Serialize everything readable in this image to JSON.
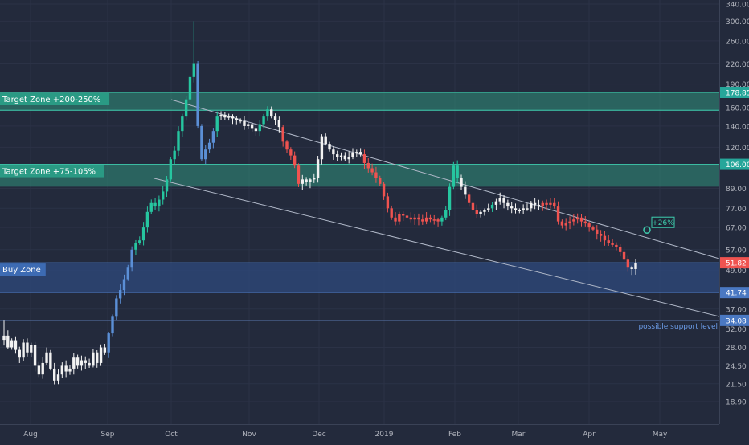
{
  "chart_data": {
    "type": "candlestick",
    "y_scale": "log",
    "ylim": [
      17.5,
      340
    ],
    "price_axis_ticks": [
      "340.00",
      "300.00",
      "260.00",
      "220.00",
      "190.00",
      "160.00",
      "140.00",
      "120.00",
      "89.00",
      "77.00",
      "67.00",
      "57.00",
      "49.00",
      "37.00",
      "32.00",
      "28.00",
      "24.50",
      "21.50",
      "18.90"
    ],
    "time_axis_labels": [
      "Aug",
      "Sep",
      "Oct",
      "Nov",
      "Dec",
      "2019",
      "Feb",
      "Mar",
      "Apr",
      "May"
    ],
    "price_markers": [
      {
        "label": "178.85",
        "value": 178.85,
        "color": "#26a69a"
      },
      {
        "label": "106.00",
        "value": 106.0,
        "color": "#26a69a"
      },
      {
        "label": "51.82",
        "value": 51.82,
        "color": "#ef5350"
      },
      {
        "label": "41.74",
        "value": 41.74,
        "color": "#4a78c2"
      },
      {
        "label": "34.08",
        "value": 34.08,
        "color": "#4a78c2"
      }
    ],
    "zones": [
      {
        "label": "Target Zone +200-250%",
        "top": 178.85,
        "bottom": 157.0,
        "color": "#2e8b77"
      },
      {
        "label": "Target Zone +75-105%",
        "top": 106.0,
        "bottom": 90.5,
        "color": "#2e8b77"
      },
      {
        "label": "Buy Zone",
        "top": 51.82,
        "bottom": 41.74,
        "color": "#2f4a7c"
      }
    ],
    "support_level": {
      "label": "possible support level",
      "value": 34.08
    },
    "target_annotation": {
      "label": "+26%",
      "value": 65.8
    },
    "colors": {
      "background": "#232a3c",
      "bull_teal": "#26c6a0",
      "bull_blue": "#5b8fd6",
      "white": "#f2f2f2",
      "bear": "#ef5350",
      "channel": "#b0b8c8",
      "axis_text": "#b2b5be"
    },
    "candles_close": [
      30.5,
      28,
      29.5,
      27.5,
      26,
      29,
      27,
      28.5,
      24.5,
      23,
      25,
      27,
      24,
      22,
      23,
      24.5,
      23.5,
      24,
      26,
      24.5,
      25.5,
      25,
      24.5,
      27,
      25,
      28,
      27,
      31,
      35,
      40,
      42.5,
      46,
      50,
      57,
      60,
      61,
      67,
      75,
      80,
      78,
      82,
      87,
      95,
      110,
      117,
      135,
      150,
      170,
      200,
      220,
      140,
      110,
      118,
      124,
      135,
      150,
      152,
      149,
      150,
      148,
      146,
      145,
      140,
      142,
      138,
      135,
      142,
      150,
      158,
      150,
      146,
      139,
      125,
      118,
      113,
      105,
      92,
      95,
      93,
      95,
      96,
      110,
      130,
      123,
      118,
      114,
      112,
      113,
      110,
      112,
      115,
      116,
      114,
      107,
      103,
      100,
      96,
      92,
      84,
      77,
      72,
      70,
      74,
      73,
      72,
      71,
      72,
      71,
      70,
      72,
      71,
      71,
      70,
      72,
      76,
      90,
      105,
      96,
      90,
      85,
      80,
      76,
      74,
      75,
      76,
      77,
      79,
      81,
      83,
      80,
      78,
      77,
      76,
      76,
      77,
      77,
      80,
      79,
      78,
      80,
      79,
      80,
      78,
      70,
      68,
      69,
      70,
      71,
      72,
      70,
      69,
      67,
      66,
      64,
      63,
      61,
      60,
      59,
      58,
      56,
      53,
      50,
      49.5,
      51.82
    ],
    "candles_color": [
      "white",
      "white",
      "white",
      "white",
      "white",
      "white",
      "white",
      "white",
      "white",
      "white",
      "white",
      "white",
      "white",
      "white",
      "white",
      "white",
      "white",
      "white",
      "white",
      "white",
      "white",
      "white",
      "white",
      "white",
      "white",
      "white",
      "white",
      "blue",
      "blue",
      "blue",
      "blue",
      "blue",
      "blue",
      "blue",
      "teal",
      "teal",
      "teal",
      "teal",
      "teal",
      "teal",
      "teal",
      "teal",
      "teal",
      "teal",
      "teal",
      "teal",
      "teal",
      "teal",
      "teal",
      "teal",
      "blue",
      "blue",
      "blue",
      "blue",
      "blue",
      "teal",
      "white",
      "white",
      "white",
      "white",
      "white",
      "white",
      "white",
      "white",
      "white",
      "white",
      "teal",
      "teal",
      "teal",
      "white",
      "white",
      "white",
      "red",
      "red",
      "red",
      "red",
      "red",
      "white",
      "white",
      "white",
      "white",
      "white",
      "white",
      "white",
      "white",
      "white",
      "white",
      "white",
      "white",
      "white",
      "white",
      "white",
      "white",
      "red",
      "red",
      "red",
      "red",
      "red",
      "red",
      "red",
      "red",
      "red",
      "red",
      "red",
      "red",
      "red",
      "red",
      "red",
      "red",
      "red",
      "red",
      "red",
      "red",
      "teal",
      "teal",
      "teal",
      "teal",
      "teal",
      "white",
      "white",
      "red",
      "red",
      "red",
      "white",
      "white",
      "white",
      "teal",
      "white",
      "white",
      "white",
      "white",
      "white",
      "white",
      "white",
      "white",
      "white",
      "white",
      "white",
      "white",
      "red",
      "red",
      "red",
      "red",
      "red",
      "red",
      "red",
      "red",
      "red",
      "red",
      "red",
      "red",
      "red",
      "red",
      "red",
      "red",
      "red",
      "red",
      "red",
      "red",
      "red",
      "red",
      "red"
    ]
  }
}
